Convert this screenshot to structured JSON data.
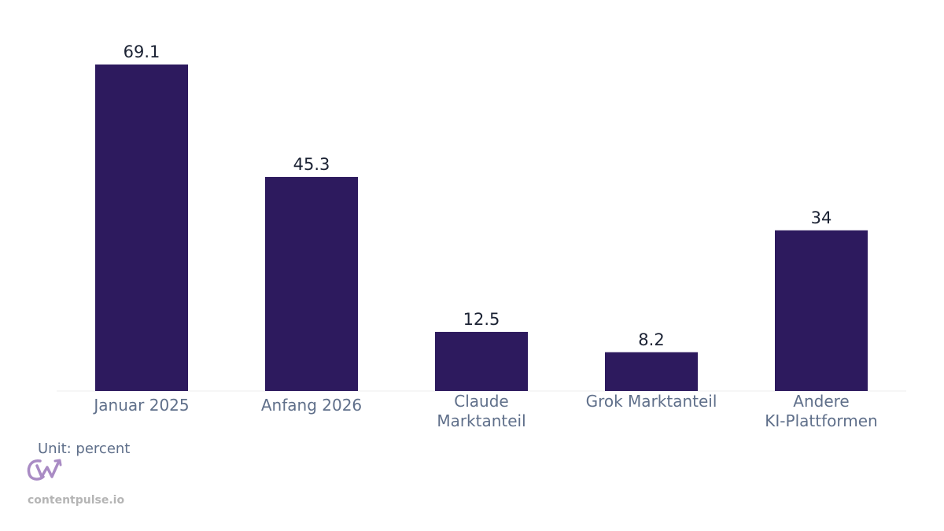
{
  "chart_data": {
    "type": "bar",
    "categories": [
      [
        "Januar 2025"
      ],
      [
        "Anfang 2026"
      ],
      [
        "Claude",
        "Marktanteil"
      ],
      [
        "Grok Marktanteil"
      ],
      [
        "Andere",
        "KI-Plattformen"
      ]
    ],
    "values": [
      69.1,
      45.3,
      12.5,
      8.2,
      34
    ],
    "value_labels": [
      "69.1",
      "45.3",
      "12.5",
      "8.2",
      "34"
    ],
    "ylim": [
      0,
      69.1
    ],
    "grid": false,
    "bar_color": "#2d1a5e",
    "unit_label": "Unit: percent"
  },
  "brand": {
    "text": "contentpulse.io",
    "logo_icon": "cw-logo-icon",
    "logo_color": "#a98bc4"
  }
}
